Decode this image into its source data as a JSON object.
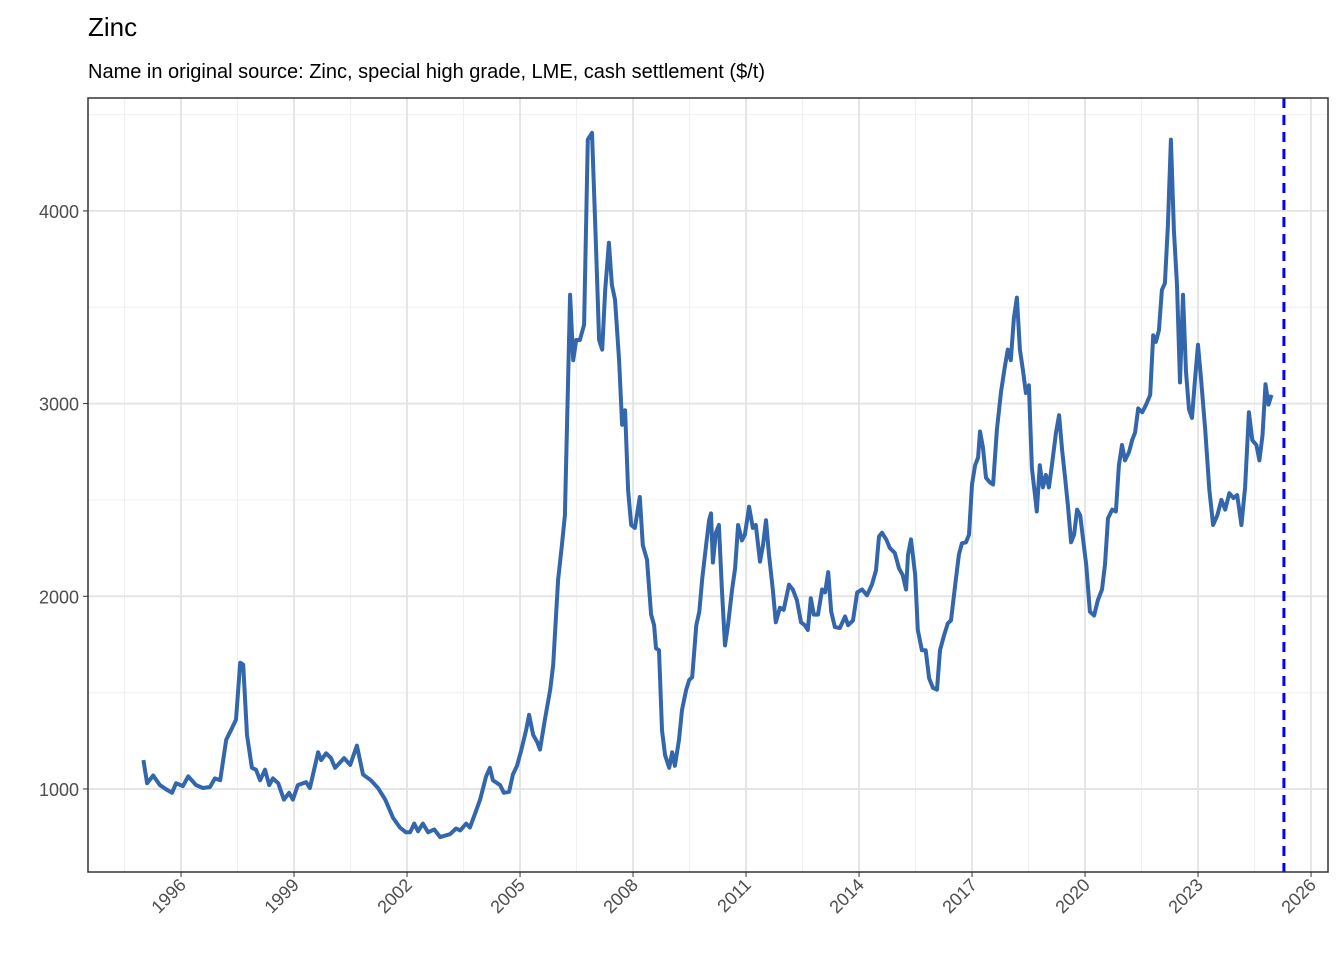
{
  "chart_data": {
    "type": "line",
    "title": "Zinc",
    "subtitle": "Name in original source: Zinc, special high grade, LME, cash settlement ($/t)",
    "x": [
      1995.0,
      1995.1,
      1995.26,
      1995.44,
      1995.63,
      1995.76,
      1995.87,
      1996.05,
      1996.19,
      1996.4,
      1996.58,
      1996.77,
      1996.9,
      1997.04,
      1997.2,
      1997.35,
      1997.46,
      1997.57,
      1997.65,
      1997.75,
      1997.88,
      1997.99,
      1998.1,
      1998.23,
      1998.34,
      1998.44,
      1998.58,
      1998.73,
      1998.87,
      1998.97,
      1999.1,
      1999.32,
      1999.42,
      1999.64,
      1999.72,
      1999.85,
      1999.98,
      2000.09,
      2000.33,
      2000.49,
      2000.67,
      2000.83,
      2001.04,
      2001.23,
      2001.42,
      2001.63,
      2001.81,
      2001.97,
      2002.08,
      2002.19,
      2002.29,
      2002.42,
      2002.56,
      2002.72,
      2002.88,
      2003.14,
      2003.3,
      2003.41,
      2003.57,
      2003.67,
      2003.83,
      2003.94,
      2004.1,
      2004.2,
      2004.28,
      2004.47,
      2004.57,
      2004.71,
      2004.81,
      2004.92,
      2005.03,
      2005.16,
      2005.24,
      2005.35,
      2005.45,
      2005.53,
      2005.66,
      2005.8,
      2005.88,
      2006.01,
      2006.11,
      2006.19,
      2006.33,
      2006.41,
      2006.49,
      2006.59,
      2006.7,
      2006.8,
      2006.91,
      2007.02,
      2007.1,
      2007.18,
      2007.26,
      2007.36,
      2007.44,
      2007.52,
      2007.63,
      2007.71,
      2007.79,
      2007.87,
      2007.95,
      2008.05,
      2008.18,
      2008.26,
      2008.37,
      2008.48,
      2008.56,
      2008.61,
      2008.69,
      2008.77,
      2008.85,
      2008.96,
      2009.04,
      2009.11,
      2009.22,
      2009.3,
      2009.41,
      2009.49,
      2009.57,
      2009.68,
      2009.76,
      2009.84,
      2009.94,
      2010.02,
      2010.07,
      2010.12,
      2010.2,
      2010.28,
      2010.36,
      2010.44,
      2010.52,
      2010.63,
      2010.71,
      2010.79,
      2010.89,
      2010.97,
      2011.08,
      2011.18,
      2011.26,
      2011.37,
      2011.45,
      2011.53,
      2011.61,
      2011.71,
      2011.79,
      2011.9,
      2012.0,
      2012.14,
      2012.24,
      2012.35,
      2012.46,
      2012.56,
      2012.64,
      2012.72,
      2012.8,
      2012.91,
      2013.02,
      2013.1,
      2013.18,
      2013.26,
      2013.36,
      2013.49,
      2013.63,
      2013.71,
      2013.84,
      2013.95,
      2014.08,
      2014.21,
      2014.34,
      2014.45,
      2014.53,
      2014.61,
      2014.72,
      2014.82,
      2014.95,
      2015.06,
      2015.16,
      2015.25,
      2015.3,
      2015.38,
      2015.49,
      2015.56,
      2015.67,
      2015.77,
      2015.86,
      2015.96,
      2016.07,
      2016.15,
      2016.26,
      2016.36,
      2016.44,
      2016.57,
      2016.65,
      2016.73,
      2016.84,
      2016.92,
      2017.0,
      2017.08,
      2017.16,
      2017.21,
      2017.29,
      2017.37,
      2017.48,
      2017.56,
      2017.66,
      2017.77,
      2017.87,
      2017.95,
      2018.03,
      2018.11,
      2018.19,
      2018.27,
      2018.35,
      2018.43,
      2018.51,
      2018.59,
      2018.67,
      2018.72,
      2018.8,
      2018.88,
      2018.96,
      2019.04,
      2019.12,
      2019.23,
      2019.31,
      2019.39,
      2019.47,
      2019.55,
      2019.63,
      2019.71,
      2019.79,
      2019.87,
      2019.95,
      2020.03,
      2020.13,
      2020.24,
      2020.34,
      2020.45,
      2020.53,
      2020.61,
      2020.72,
      2020.82,
      2020.9,
      2020.98,
      2021.06,
      2021.17,
      2021.25,
      2021.33,
      2021.41,
      2021.52,
      2021.62,
      2021.73,
      2021.81,
      2021.88,
      2021.96,
      2022.04,
      2022.12,
      2022.2,
      2022.28,
      2022.36,
      2022.44,
      2022.52,
      2022.6,
      2022.68,
      2022.76,
      2022.84,
      2022.92,
      2023.0,
      2023.08,
      2023.19,
      2023.3,
      2023.4,
      2023.51,
      2023.62,
      2023.72,
      2023.83,
      2023.94,
      2024.04,
      2024.15,
      2024.25,
      2024.35,
      2024.44,
      2024.55,
      2024.63,
      2024.71,
      2024.79,
      2024.87,
      2024.95
    ],
    "series": [
      {
        "color": "#3366aa",
        "values": [
          1150,
          1030,
          1070,
          1020,
          995,
          980,
          1030,
          1015,
          1065,
          1020,
          1005,
          1010,
          1055,
          1045,
          1255,
          1315,
          1360,
          1655,
          1645,
          1280,
          1110,
          1100,
          1045,
          1100,
          1020,
          1055,
          1030,
          945,
          980,
          945,
          1020,
          1035,
          1005,
          1190,
          1150,
          1185,
          1160,
          1110,
          1160,
          1125,
          1225,
          1075,
          1045,
          1005,
          945,
          850,
          800,
          775,
          775,
          820,
          780,
          820,
          775,
          790,
          750,
          765,
          795,
          785,
          820,
          800,
          885,
          945,
          1065,
          1110,
          1045,
          1020,
          980,
          985,
          1075,
          1120,
          1200,
          1305,
          1385,
          1280,
          1245,
          1205,
          1360,
          1515,
          1645,
          2085,
          2265,
          2420,
          3565,
          3225,
          3330,
          3330,
          3410,
          4370,
          4405,
          3800,
          3330,
          3280,
          3590,
          3835,
          3615,
          3540,
          3225,
          2890,
          2965,
          2550,
          2370,
          2355,
          2515,
          2265,
          2190,
          1905,
          1850,
          1730,
          1720,
          1305,
          1175,
          1110,
          1190,
          1120,
          1255,
          1410,
          1515,
          1565,
          1580,
          1850,
          1920,
          2095,
          2265,
          2395,
          2430,
          2175,
          2330,
          2370,
          2035,
          1745,
          1850,
          2035,
          2145,
          2370,
          2290,
          2320,
          2465,
          2355,
          2370,
          2180,
          2265,
          2395,
          2215,
          2035,
          1865,
          1940,
          1930,
          2060,
          2035,
          1980,
          1865,
          1850,
          1825,
          1990,
          1905,
          1905,
          2035,
          2020,
          2125,
          1920,
          1840,
          1835,
          1895,
          1850,
          1875,
          2020,
          2035,
          2005,
          2060,
          2135,
          2310,
          2330,
          2295,
          2250,
          2225,
          2145,
          2110,
          2035,
          2215,
          2295,
          2110,
          1825,
          1720,
          1720,
          1575,
          1525,
          1515,
          1720,
          1800,
          1860,
          1875,
          2085,
          2215,
          2275,
          2280,
          2320,
          2580,
          2680,
          2720,
          2855,
          2770,
          2615,
          2590,
          2580,
          2865,
          3060,
          3190,
          3280,
          3225,
          3445,
          3550,
          3280,
          3175,
          3055,
          3095,
          2665,
          2525,
          2440,
          2680,
          2565,
          2630,
          2565,
          2680,
          2850,
          2940,
          2760,
          2615,
          2460,
          2280,
          2320,
          2450,
          2420,
          2290,
          2165,
          1920,
          1900,
          1980,
          2035,
          2165,
          2405,
          2450,
          2440,
          2680,
          2785,
          2705,
          2750,
          2810,
          2850,
          2975,
          2955,
          2995,
          3045,
          3355,
          3320,
          3380,
          3590,
          3625,
          3925,
          4370,
          3900,
          3615,
          3110,
          3565,
          3165,
          2970,
          2925,
          3125,
          3305,
          3125,
          2865,
          2555,
          2370,
          2420,
          2500,
          2450,
          2535,
          2510,
          2525,
          2370,
          2565,
          2955,
          2810,
          2785,
          2705,
          2835,
          3100,
          2995,
          3045
        ]
      }
    ],
    "vline": {
      "x": 2025.28,
      "color": "#0000ff",
      "dashed": true
    },
    "xlim": [
      1993.53,
      2026.45
    ],
    "xticks": [
      1996,
      1999,
      2002,
      2005,
      2008,
      2011,
      2014,
      2017,
      2020,
      2023,
      2026
    ],
    "ylim": [
      569,
      4586
    ],
    "yticks": [
      1000,
      2000,
      3000,
      4000
    ],
    "grid": true
  }
}
